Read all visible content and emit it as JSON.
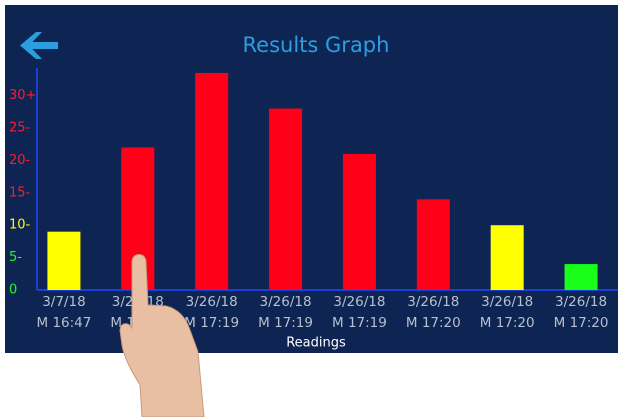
{
  "chart_data": {
    "type": "bar",
    "title": "Results Graph",
    "x_label": "Readings",
    "categories": [
      [
        "3/7/18",
        "M 16:47"
      ],
      [
        "3/26/18",
        "M 17:18"
      ],
      [
        "3/26/18",
        "M 17:19"
      ],
      [
        "3/26/18",
        "M 17:19"
      ],
      [
        "3/26/18",
        "M 17:19"
      ],
      [
        "3/26/18",
        "M 17:20"
      ],
      [
        "3/26/18",
        "M 17:20"
      ],
      [
        "3/26/18",
        "M 17:20"
      ]
    ],
    "values": [
      9,
      22,
      33.5,
      28,
      21,
      14,
      10,
      4
    ],
    "colors": [
      "#ffff00",
      "#ff0019",
      "#ff0019",
      "#ff0019",
      "#ff0019",
      "#ff0019",
      "#ffff00",
      "#19ff19"
    ],
    "ylim": [
      0,
      34
    ],
    "yticks": [
      0,
      {
        "value": 5,
        "label": "5-"
      },
      {
        "value": 10,
        "label": "10-"
      },
      {
        "value": 15,
        "label": "15-"
      },
      {
        "value": 20,
        "label": "20-"
      },
      {
        "value": 25,
        "label": "25-"
      },
      {
        "value": 30,
        "label": "30+"
      }
    ],
    "ytick_colors": [
      "#19ff19",
      "#19ff19",
      "#ffff00",
      "#ff1a33",
      "#ff1a33",
      "#ff1a33",
      "#ff1a33"
    ]
  }
}
